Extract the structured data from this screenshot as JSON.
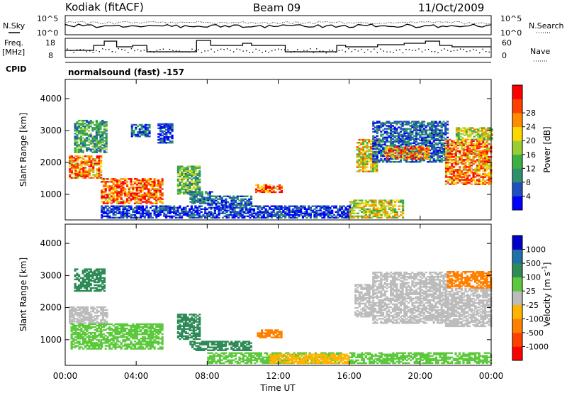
{
  "header": {
    "radar": "Kodiak (fitACF)",
    "beam": "Beam 09",
    "date": "11/Oct/2009"
  },
  "panels": {
    "nsky_label": "N.Sky",
    "nsearch_label": "N.Search",
    "freq_label_1": "Freq.",
    "freq_label_2": "[MHz]",
    "nave_label": "Nave",
    "cpid_label": "CPID",
    "cpid_value": "normalsound (fast) -157",
    "noise_left_ticks": [
      "10^5",
      "10^0"
    ],
    "noise_right_ticks": [
      "10^5",
      "10^0"
    ],
    "freq_left_ticks": [
      "18",
      "8"
    ],
    "freq_right_ticks": [
      "60",
      "0"
    ]
  },
  "chart_data": [
    {
      "type": "heatmap",
      "quantity": "Power",
      "xlabel": "",
      "ylabel": "Slant Range [km]",
      "xlim": [
        "00:00",
        "24:00"
      ],
      "ylim": [
        200,
        4600
      ],
      "yticks": [
        1000,
        2000,
        3000,
        4000
      ],
      "colorbar": {
        "label": "Power [dB]",
        "ticks": [
          "4",
          "8",
          "12",
          "16",
          "20",
          "24",
          "28"
        ],
        "colors": [
          "#0000ff",
          "#1f4fbf",
          "#2f8f6f",
          "#3cb043",
          "#9acd32",
          "#ffd700",
          "#ff8c00",
          "#ff4000",
          "#ff0000"
        ]
      },
      "regions": [
        {
          "t0": 0.2,
          "t1": 2.0,
          "r0": 1500,
          "r1": 2200,
          "level": 24
        },
        {
          "t0": 0.5,
          "t1": 2.3,
          "r0": 2300,
          "r1": 3300,
          "level": 12
        },
        {
          "t0": 2.0,
          "t1": 5.5,
          "r0": 700,
          "r1": 1500,
          "level": 26
        },
        {
          "t0": 3.7,
          "t1": 4.7,
          "r0": 2800,
          "r1": 3200,
          "level": 8
        },
        {
          "t0": 5.2,
          "t1": 6.0,
          "r0": 2600,
          "r1": 3200,
          "level": 6
        },
        {
          "t0": 6.3,
          "t1": 7.6,
          "r0": 1000,
          "r1": 1900,
          "level": 14
        },
        {
          "t0": 7.0,
          "t1": 8.3,
          "r0": 700,
          "r1": 1100,
          "level": 10
        },
        {
          "t0": 8.0,
          "t1": 10.5,
          "r0": 650,
          "r1": 950,
          "level": 8
        },
        {
          "t0": 10.7,
          "t1": 12.2,
          "r0": 1050,
          "r1": 1300,
          "level": 26
        },
        {
          "t0": 2.0,
          "t1": 16.0,
          "r0": 250,
          "r1": 650,
          "level": 6
        },
        {
          "t0": 16.0,
          "t1": 19.0,
          "r0": 250,
          "r1": 800,
          "level": 18
        },
        {
          "t0": 16.4,
          "t1": 17.5,
          "r0": 1700,
          "r1": 2700,
          "level": 20
        },
        {
          "t0": 17.3,
          "t1": 21.5,
          "r0": 2000,
          "r1": 3300,
          "level": 8
        },
        {
          "t0": 18.0,
          "t1": 20.5,
          "r0": 2100,
          "r1": 2500,
          "level": 24
        },
        {
          "t0": 21.4,
          "t1": 24.0,
          "r0": 1300,
          "r1": 2700,
          "level": 24
        },
        {
          "t0": 22.0,
          "t1": 24.0,
          "r0": 2700,
          "r1": 3100,
          "level": 18
        }
      ]
    },
    {
      "type": "heatmap",
      "quantity": "Velocity",
      "xlabel": "Time UT",
      "ylabel": "Slant Range [km]",
      "xticks": [
        "00:00",
        "04:00",
        "08:00",
        "12:00",
        "16:00",
        "20:00",
        "00:00"
      ],
      "ylim": [
        200,
        4600
      ],
      "yticks": [
        1000,
        2000,
        3000,
        4000
      ],
      "colorbar": {
        "label": "Velocity [m s",
        "label_sup": "-1",
        "label_end": "]",
        "ticks": [
          "1000",
          "500",
          "100",
          "25",
          "-25",
          "-100",
          "-500",
          "-1000"
        ],
        "colors": [
          "#0000c8",
          "#1f6fa8",
          "#2e8b57",
          "#5cc83c",
          "#bcbcbc",
          "#ffb400",
          "#ff8000",
          "#ff4000",
          "#ff0000"
        ]
      },
      "regions": [
        {
          "t0": 0.2,
          "t1": 2.3,
          "r0": 1500,
          "r1": 2000,
          "level": -10
        },
        {
          "t0": 0.3,
          "t1": 2.0,
          "r0": 700,
          "r1": 1500,
          "level": 60
        },
        {
          "t0": 2.0,
          "t1": 5.5,
          "r0": 700,
          "r1": 1500,
          "level": 60
        },
        {
          "t0": 0.5,
          "t1": 2.2,
          "r0": 2500,
          "r1": 3200,
          "level": 250
        },
        {
          "t0": 6.3,
          "t1": 7.6,
          "r0": 1000,
          "r1": 1800,
          "level": 300
        },
        {
          "t0": 7.0,
          "t1": 10.5,
          "r0": 650,
          "r1": 950,
          "level": 300
        },
        {
          "t0": 10.8,
          "t1": 12.2,
          "r0": 1050,
          "r1": 1300,
          "level": -300
        },
        {
          "t0": 8.0,
          "t1": 15.5,
          "r0": 250,
          "r1": 600,
          "level": 60
        },
        {
          "t0": 11.5,
          "t1": 16.0,
          "r0": 250,
          "r1": 550,
          "level": -60
        },
        {
          "t0": 16.0,
          "t1": 24.0,
          "r0": 250,
          "r1": 600,
          "level": 60
        },
        {
          "t0": 17.3,
          "t1": 21.5,
          "r0": 1500,
          "r1": 3100,
          "level": 0
        },
        {
          "t0": 21.4,
          "t1": 24.0,
          "r0": 1400,
          "r1": 2600,
          "level": 0
        },
        {
          "t0": 21.5,
          "t1": 24.0,
          "r0": 2600,
          "r1": 3100,
          "level": -300
        },
        {
          "t0": 16.3,
          "t1": 17.3,
          "r0": 1700,
          "r1": 2700,
          "level": 0
        }
      ]
    }
  ]
}
